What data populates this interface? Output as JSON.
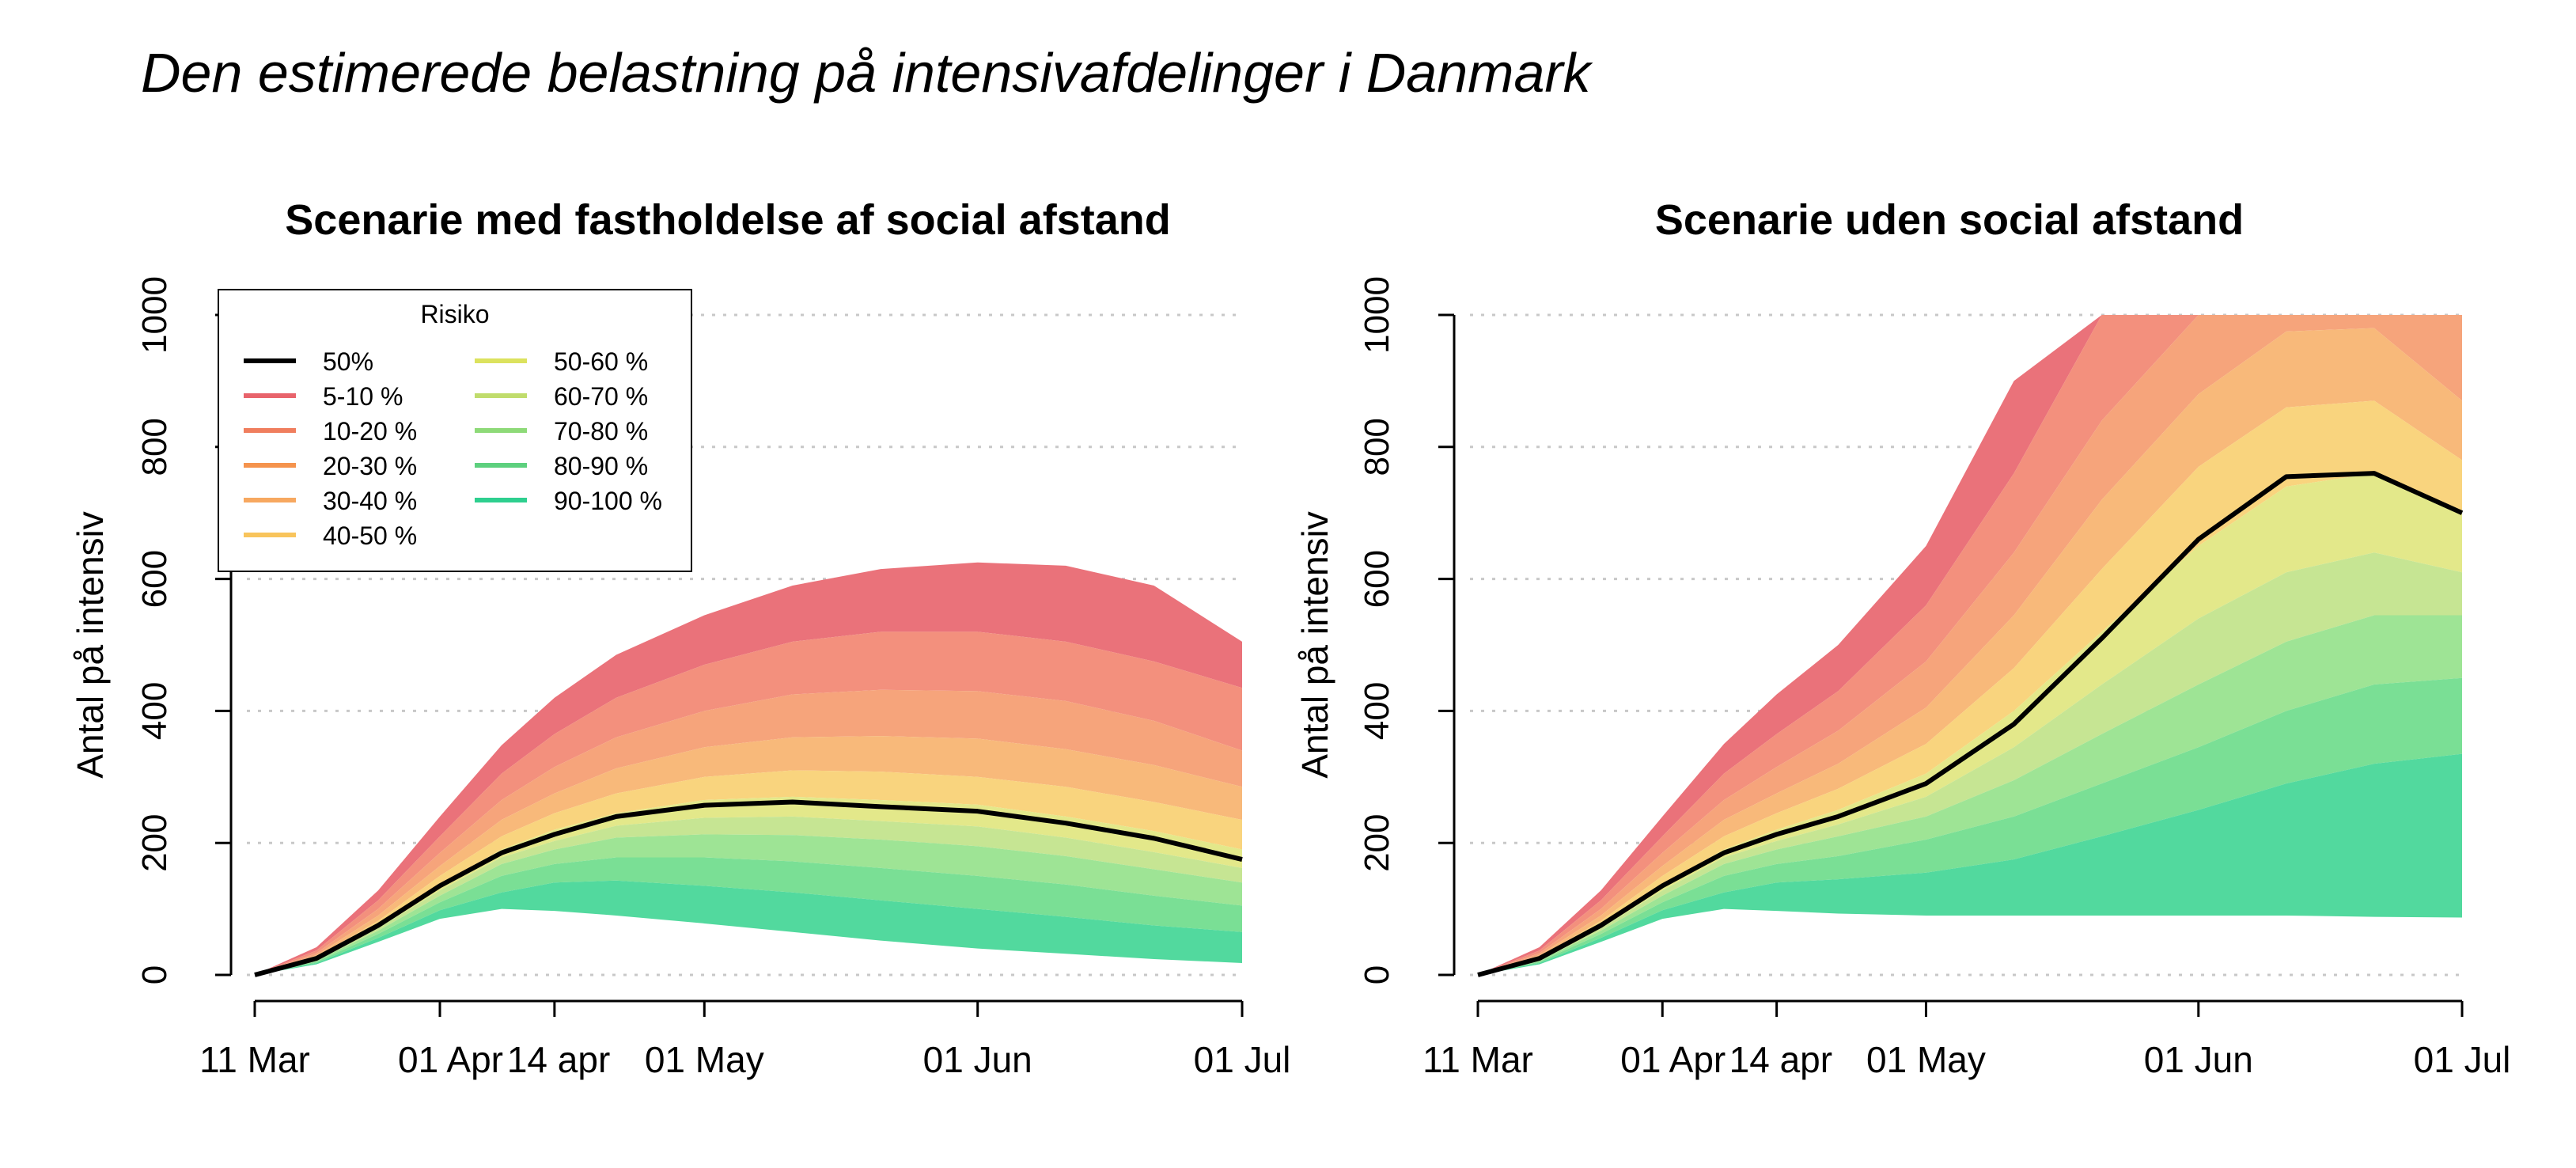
{
  "page_title": "Den estimerede belastning på intensivafdelinger i Danmark",
  "legend": {
    "title": "Risiko",
    "items": [
      {
        "label": "50%",
        "color": "#000000"
      },
      {
        "label": "5-10 %",
        "color": "#E8636B"
      },
      {
        "label": "10-20 %",
        "color": "#F07E5E"
      },
      {
        "label": "20-30 %",
        "color": "#F5934D"
      },
      {
        "label": "30-40 %",
        "color": "#F7A860"
      },
      {
        "label": "40-50 %",
        "color": "#F8C45C"
      },
      {
        "label": "50-60 %",
        "color": "#DCE25E"
      },
      {
        "label": "60-70 %",
        "color": "#C0DC6C"
      },
      {
        "label": "70-80 %",
        "color": "#8EDA78"
      },
      {
        "label": "80-90 %",
        "color": "#5DD07E"
      },
      {
        "label": "90-100 %",
        "color": "#2ECF8F"
      }
    ]
  },
  "band_fill_colors": [
    "#EA727A",
    "#F3907D",
    "#F6A47B",
    "#F8B97A",
    "#F9D47E",
    "#E3E88A",
    "#C6E593",
    "#9EE495",
    "#7ADF95",
    "#52D99E"
  ],
  "chart_data": [
    {
      "type": "area",
      "title": "Scenarie med fastholdelse af social afstand",
      "xlabel": "",
      "ylabel": "Antal på intensiv",
      "ylim": [
        0,
        1000
      ],
      "xlim": [
        "2020-03-11",
        "2020-07-01"
      ],
      "x_ticks": [
        {
          "date": "2020-03-11",
          "label": "11 Mar"
        },
        {
          "date": "2020-04-01",
          "label": "01 Apr"
        },
        {
          "date": "2020-04-14",
          "label": "14 apr"
        },
        {
          "date": "2020-05-01",
          "label": "01 May"
        },
        {
          "date": "2020-06-01",
          "label": "01 Jun"
        },
        {
          "date": "2020-07-01",
          "label": "01 Jul"
        }
      ],
      "y_ticks": [
        0,
        200,
        400,
        600,
        800,
        1000
      ],
      "grid": "horizontal dotted",
      "legend_position": "top-left",
      "x": [
        "2020-03-11",
        "2020-03-18",
        "2020-03-25",
        "2020-04-01",
        "2020-04-08",
        "2020-04-14",
        "2020-04-21",
        "2020-05-01",
        "2020-05-11",
        "2020-05-21",
        "2020-06-01",
        "2020-06-11",
        "2020-06-21",
        "2020-07-01"
      ],
      "median": [
        0,
        25,
        75,
        135,
        185,
        213,
        240,
        257,
        262,
        255,
        248,
        230,
        207,
        175
      ],
      "bounds": [
        {
          "name": "lower",
          "values": [
            0,
            16,
            50,
            85,
            100,
            97,
            90,
            78,
            65,
            52,
            40,
            32,
            24,
            18
          ]
        },
        {
          "name": "q10",
          "values": [
            0,
            18,
            56,
            98,
            125,
            140,
            143,
            135,
            125,
            113,
            100,
            88,
            75,
            65
          ]
        },
        {
          "name": "q20",
          "values": [
            0,
            20,
            62,
            110,
            150,
            168,
            178,
            178,
            172,
            162,
            150,
            137,
            120,
            105
          ]
        },
        {
          "name": "q30",
          "values": [
            0,
            22,
            67,
            120,
            168,
            190,
            208,
            213,
            212,
            205,
            195,
            180,
            160,
            140
          ]
        },
        {
          "name": "q40",
          "values": [
            0,
            23,
            71,
            128,
            178,
            203,
            226,
            238,
            240,
            233,
            225,
            208,
            186,
            162
          ]
        },
        {
          "name": "q50",
          "values": [
            0,
            25,
            76,
            137,
            190,
            220,
            245,
            265,
            270,
            265,
            258,
            240,
            218,
            190
          ]
        },
        {
          "name": "q60",
          "values": [
            0,
            27,
            82,
            150,
            210,
            245,
            275,
            300,
            310,
            308,
            300,
            285,
            262,
            235
          ]
        },
        {
          "name": "q70",
          "values": [
            0,
            30,
            90,
            165,
            235,
            275,
            313,
            345,
            360,
            362,
            358,
            342,
            318,
            285
          ]
        },
        {
          "name": "q80",
          "values": [
            0,
            33,
            100,
            185,
            265,
            315,
            360,
            400,
            425,
            432,
            430,
            415,
            385,
            340
          ]
        },
        {
          "name": "q90",
          "values": [
            0,
            37,
            113,
            210,
            305,
            365,
            420,
            470,
            505,
            520,
            520,
            505,
            475,
            435
          ]
        },
        {
          "name": "upper",
          "values": [
            0,
            42,
            128,
            240,
            348,
            420,
            485,
            545,
            590,
            615,
            625,
            620,
            590,
            505
          ]
        }
      ]
    },
    {
      "type": "area",
      "title": "Scenarie uden social afstand",
      "xlabel": "",
      "ylabel": "Antal på intensiv",
      "ylim": [
        0,
        1000
      ],
      "xlim": [
        "2020-03-11",
        "2020-07-01"
      ],
      "x_ticks": [
        {
          "date": "2020-03-11",
          "label": "11 Mar"
        },
        {
          "date": "2020-04-01",
          "label": "01 Apr"
        },
        {
          "date": "2020-04-14",
          "label": "14 apr"
        },
        {
          "date": "2020-05-01",
          "label": "01 May"
        },
        {
          "date": "2020-06-01",
          "label": "01 Jun"
        },
        {
          "date": "2020-07-01",
          "label": "01 Jul"
        }
      ],
      "y_ticks": [
        0,
        200,
        400,
        600,
        800,
        1000
      ],
      "grid": "horizontal dotted",
      "x": [
        "2020-03-11",
        "2020-03-18",
        "2020-03-25",
        "2020-04-01",
        "2020-04-08",
        "2020-04-14",
        "2020-04-21",
        "2020-05-01",
        "2020-05-11",
        "2020-05-21",
        "2020-06-01",
        "2020-06-11",
        "2020-06-21",
        "2020-07-01"
      ],
      "median": [
        0,
        25,
        75,
        135,
        185,
        213,
        240,
        290,
        380,
        510,
        660,
        755,
        760,
        700
      ],
      "bounds": [
        {
          "name": "lower",
          "values": [
            0,
            16,
            50,
            85,
            100,
            97,
            93,
            90,
            90,
            90,
            90,
            90,
            88,
            87
          ]
        },
        {
          "name": "q10",
          "values": [
            0,
            18,
            56,
            98,
            125,
            140,
            145,
            155,
            175,
            210,
            250,
            290,
            320,
            335
          ]
        },
        {
          "name": "q20",
          "values": [
            0,
            20,
            62,
            110,
            150,
            168,
            180,
            205,
            240,
            290,
            345,
            400,
            440,
            450
          ]
        },
        {
          "name": "q30",
          "values": [
            0,
            22,
            67,
            120,
            168,
            190,
            210,
            240,
            295,
            365,
            440,
            505,
            545,
            545
          ]
        },
        {
          "name": "q40",
          "values": [
            0,
            23,
            71,
            128,
            178,
            203,
            228,
            270,
            345,
            440,
            540,
            610,
            640,
            610
          ]
        },
        {
          "name": "q50",
          "values": [
            0,
            25,
            76,
            137,
            190,
            220,
            250,
            305,
            400,
            520,
            650,
            740,
            760,
            700
          ]
        },
        {
          "name": "q60",
          "values": [
            0,
            27,
            82,
            150,
            210,
            245,
            282,
            350,
            465,
            615,
            770,
            860,
            870,
            780
          ]
        },
        {
          "name": "q70",
          "values": [
            0,
            30,
            90,
            165,
            235,
            275,
            320,
            405,
            545,
            720,
            880,
            975,
            980,
            870
          ]
        },
        {
          "name": "q80",
          "values": [
            0,
            33,
            100,
            185,
            265,
            315,
            370,
            475,
            640,
            840,
            1000,
            1000,
            1000,
            1000
          ]
        },
        {
          "name": "q90",
          "values": [
            0,
            37,
            113,
            210,
            305,
            365,
            430,
            560,
            760,
            1000,
            1000,
            1000,
            1000,
            1000
          ]
        },
        {
          "name": "upper",
          "values": [
            0,
            42,
            128,
            240,
            350,
            425,
            500,
            650,
            900,
            1000,
            1000,
            1000,
            1000,
            1000
          ]
        }
      ]
    }
  ]
}
